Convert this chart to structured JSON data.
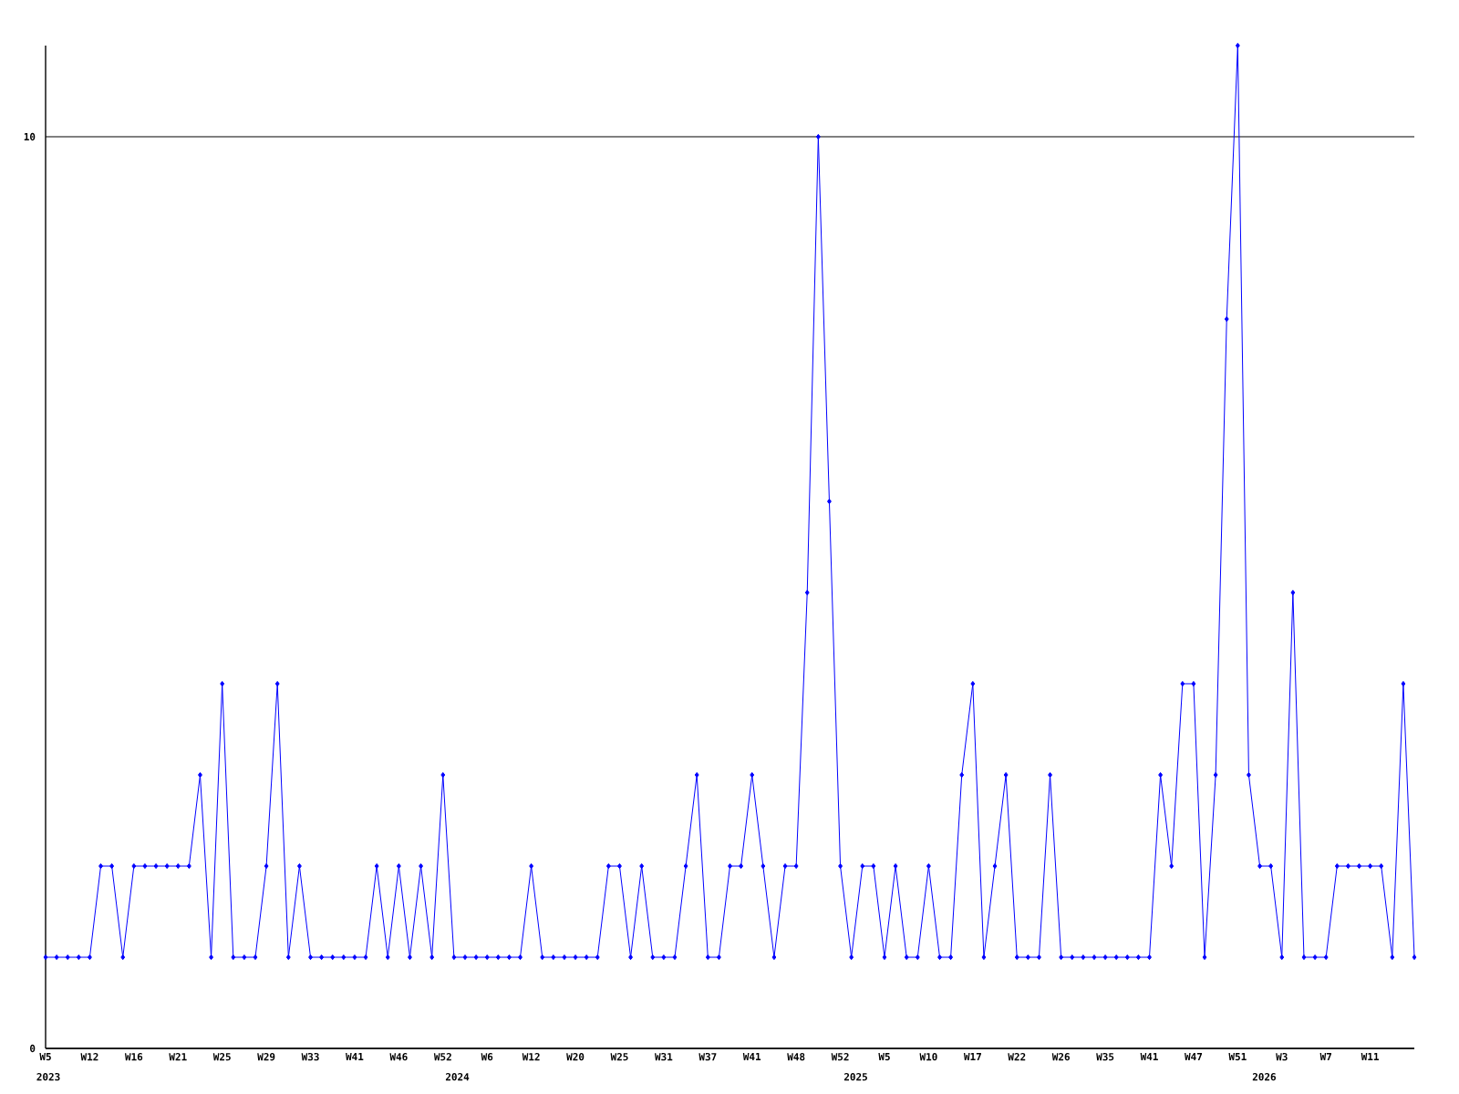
{
  "chart_data": {
    "type": "line",
    "categories": [
      "W5",
      null,
      null,
      null,
      "W12",
      null,
      null,
      null,
      "W16",
      null,
      null,
      null,
      "W21",
      null,
      null,
      null,
      "W25",
      null,
      null,
      null,
      "W29",
      null,
      null,
      null,
      "W33",
      null,
      null,
      null,
      "W41",
      null,
      null,
      null,
      "W46",
      null,
      null,
      null,
      "W52",
      null,
      null,
      null,
      "W6",
      null,
      null,
      null,
      "W12",
      null,
      null,
      null,
      "W20",
      null,
      null,
      null,
      "W25",
      null,
      null,
      null,
      "W31",
      null,
      null,
      null,
      "W37",
      null,
      null,
      null,
      "W41",
      null,
      null,
      null,
      "W48",
      null,
      null,
      null,
      "W52",
      null,
      null,
      null,
      "W5",
      null,
      null,
      null,
      "W10",
      null,
      null,
      null,
      "W17",
      null,
      null,
      null,
      "W22",
      null,
      null,
      null,
      "W26",
      null,
      null,
      null,
      "W35",
      null,
      null,
      null,
      "W41",
      null,
      null,
      null,
      "W47",
      null,
      null,
      null,
      "W51",
      null,
      null,
      null,
      "W3",
      null,
      null,
      null,
      "W7",
      null,
      null,
      null,
      "W11",
      null,
      null,
      null,
      null
    ],
    "values": [
      1,
      1,
      1,
      1,
      1,
      2,
      2,
      1,
      2,
      2,
      2,
      2,
      2,
      2,
      3,
      1,
      4,
      1,
      1,
      1,
      2,
      4,
      1,
      2,
      1,
      1,
      1,
      1,
      1,
      1,
      2,
      1,
      2,
      1,
      2,
      1,
      3,
      1,
      1,
      1,
      1,
      1,
      1,
      1,
      2,
      1,
      1,
      1,
      1,
      1,
      1,
      2,
      2,
      1,
      2,
      1,
      1,
      1,
      2,
      3,
      1,
      1,
      2,
      2,
      3,
      2,
      1,
      2,
      2,
      5,
      10,
      6,
      2,
      1,
      2,
      2,
      1,
      2,
      1,
      1,
      2,
      1,
      1,
      3,
      4,
      1,
      2,
      3,
      1,
      1,
      1,
      3,
      1,
      1,
      1,
      1,
      1,
      1,
      1,
      1,
      1,
      3,
      2,
      4,
      4,
      1,
      3,
      8,
      11,
      3,
      2,
      2,
      1,
      5,
      1,
      1,
      1,
      2,
      2,
      2,
      2,
      2,
      1,
      4,
      1
    ],
    "color": "#0000ff",
    "marker": "diamond",
    "line_style": "solid",
    "ylim": [
      0,
      11
    ],
    "yticks": [
      0,
      10
    ],
    "grid": "y",
    "annotations": [
      "2023",
      "2024",
      "2025",
      "2026"
    ]
  }
}
